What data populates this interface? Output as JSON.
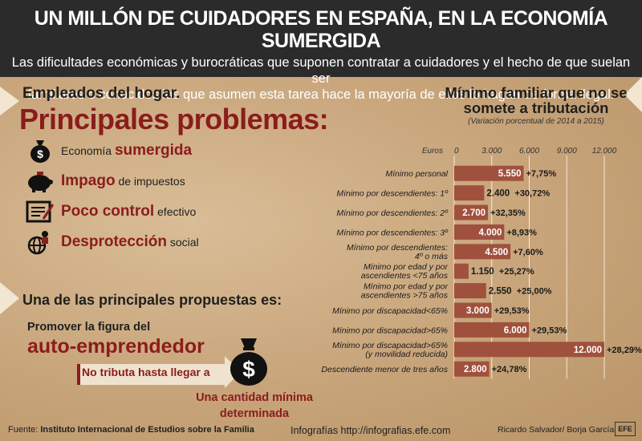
{
  "header": {
    "title": "UN MILLÓN DE CUIDADORES EN ESPAÑA, EN LA ECONOMÍA SUMERGIDA",
    "subtitle_line1": "Las dificultades económicas y burocráticas que suponen contratar a cuidadores y el hecho de que suelan ser",
    "subtitle_line2": "familiares o conocidos los que asumen esta tarea hace la mayoría de ellos lo hagan de forma ilegal."
  },
  "left": {
    "section_label": "Empleados del hogar.",
    "section_title": "Principales problemas:",
    "problems": [
      {
        "icon": "money-bag-icon",
        "pre": "Economía ",
        "highlight": "sumergida",
        "post": ""
      },
      {
        "icon": "piggy-bank-icon",
        "pre": "",
        "highlight": "Impago",
        "post": " de impuestos"
      },
      {
        "icon": "document-check-icon",
        "pre": "",
        "highlight": "Poco control",
        "post": " efectivo"
      },
      {
        "icon": "globe-person-icon",
        "pre": "",
        "highlight": "Desprotección",
        "post": " social"
      }
    ],
    "proposal_title": "Una de las principales propuestas es:",
    "promote_text": "Promover la figura del",
    "auto_text": "auto-emprendedor",
    "no_tributa": "No tributa hasta llegar a",
    "amount_line1": "Una cantidad mínima",
    "amount_line2": "determinada"
  },
  "footer": {
    "source_label": "Fuente: ",
    "source_name": "Instituto Internacional de Estudios sobre la Familia",
    "infografias": "Infografías http://infografias.efe.com",
    "credit": "Ricardo Salvador/ Borja García",
    "logo": "EFE"
  },
  "colors": {
    "bar": "#a0513d",
    "accent": "#8b1c1c",
    "header_bg": "#2b2b2b"
  },
  "chart_data": {
    "type": "bar",
    "orientation": "horizontal",
    "title_line1": "Mínimo familiar que no se",
    "title_line2": "somete a tributación",
    "subtitle": "(Variación porcentual de 2014 a 2015)",
    "axis_unit": "Euros",
    "xlim": [
      0,
      12000
    ],
    "xticks": [
      0,
      3000,
      6000,
      9000,
      12000
    ],
    "xtick_labels": [
      "0",
      "3.000",
      "6.000",
      "9.000",
      "12.000"
    ],
    "categories": [
      [
        "Mínimo personal"
      ],
      [
        "Mínimo por descendientes: 1º"
      ],
      [
        "Mínimo por descendientes: 2º"
      ],
      [
        "Mínimo por descendientes: 3º"
      ],
      [
        "Mínimo por descendientes:",
        "4º o más"
      ],
      [
        "Mínimo por edad y por",
        "ascendientes <75 años"
      ],
      [
        "Mínimo por edad y por",
        "ascendientes >75 años"
      ],
      [
        "Mínimo por discapacidad<65%"
      ],
      [
        "Mínimo por discapacidad>65%"
      ],
      [
        "Mínimo por discapacidad>65%",
        "(y movilidad reducida)"
      ],
      [
        "Descendiente menor de tres años"
      ]
    ],
    "values": [
      5550,
      2400,
      2700,
      4000,
      4500,
      1150,
      2550,
      3000,
      6000,
      12000,
      2800
    ],
    "value_labels": [
      "5.550",
      "2.400",
      "2.700",
      "4.000",
      "4.500",
      "1.150",
      "2.550",
      "3.000",
      "6.000",
      "12.000",
      "2.800"
    ],
    "change_labels": [
      "+7,75%",
      "+30,72%",
      "+32,35%",
      "+8,93%",
      "+7,60%",
      "+25,27%",
      "+25,00%",
      "+29,53%",
      "+29,53%",
      "+28,29%",
      "+24,78%"
    ]
  }
}
